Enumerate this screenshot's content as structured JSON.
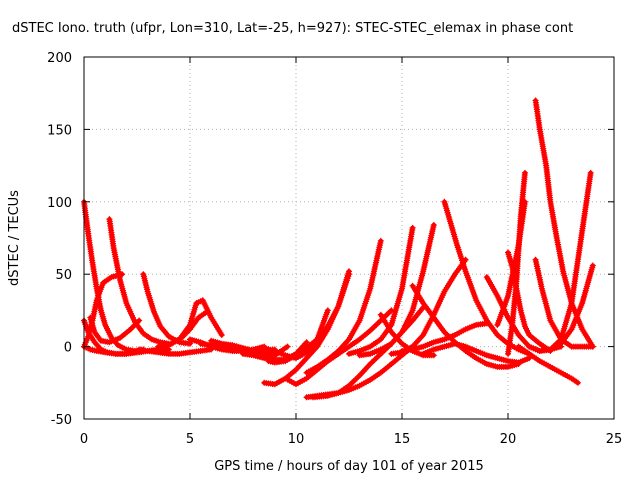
{
  "chart_data": {
    "type": "scatter",
    "title": "dSTEC Iono. truth (ufpr, Lon=310, Lat=-25, h=927): STEC-STEC_elemax in phase cont",
    "xlabel": "GPS time / hours of day 101 of year 2015",
    "ylabel": "dSTEC  / TECUs",
    "xlim": [
      0,
      25
    ],
    "ylim": [
      -50,
      200
    ],
    "xticks": [
      0,
      5,
      10,
      15,
      20,
      25
    ],
    "yticks": [
      -50,
      0,
      50,
      100,
      150,
      200
    ],
    "xtick_labels": [
      "0",
      "5",
      "10",
      "15",
      "20",
      "25"
    ],
    "ytick_labels": [
      "-50",
      "0",
      "50",
      "100",
      "150",
      "200"
    ],
    "grid": true,
    "legend": "none",
    "marker": "plus",
    "color": "#ff0000",
    "series": [
      {
        "x": [
          0.0,
          0.2,
          0.4,
          0.6,
          0.8,
          1.0,
          1.3,
          1.6,
          2.0,
          2.4,
          2.8
        ],
        "y": [
          100,
          78,
          58,
          40,
          25,
          15,
          6,
          1,
          -2,
          -3,
          -2
        ]
      },
      {
        "x": [
          0.0,
          0.2,
          0.5,
          0.8,
          1.1,
          1.5,
          2.0,
          2.5,
          3.0
        ],
        "y": [
          18,
          10,
          3,
          -2,
          -4,
          -5,
          -5,
          -4,
          -3
        ]
      },
      {
        "x": [
          0.0,
          0.3,
          0.6,
          1.0,
          1.5,
          2.0,
          2.5,
          3.0,
          3.5,
          4.0
        ],
        "y": [
          0,
          -2,
          -3,
          -4,
          -5,
          -5,
          -4,
          -3,
          -2,
          -2
        ]
      },
      {
        "x": [
          0.0,
          0.2,
          0.4,
          0.6,
          0.9,
          1.3,
          1.8
        ],
        "y": [
          0,
          7,
          18,
          32,
          44,
          48,
          50
        ]
      },
      {
        "x": [
          0.3,
          0.5,
          0.8,
          1.2,
          1.7,
          2.2,
          2.6
        ],
        "y": [
          20,
          10,
          4,
          3,
          6,
          12,
          18
        ]
      },
      {
        "x": [
          1.2,
          1.4,
          1.7,
          2.0,
          2.4,
          2.8,
          3.2,
          3.6,
          4.0
        ],
        "y": [
          88,
          68,
          46,
          30,
          17,
          9,
          5,
          3,
          2
        ]
      },
      {
        "x": [
          2.8,
          3.0,
          3.3,
          3.6,
          4.0,
          4.5,
          5.0
        ],
        "y": [
          50,
          38,
          24,
          14,
          7,
          3,
          2
        ]
      },
      {
        "x": [
          2.6,
          3.0,
          3.5,
          4.0,
          4.5,
          5.0,
          5.5,
          6.0
        ],
        "y": [
          -2,
          -3,
          -4,
          -5,
          -5,
          -4,
          -3,
          -2
        ]
      },
      {
        "x": [
          3.5,
          4.0,
          4.5,
          5.0,
          5.3,
          5.6,
          6.0,
          6.5
        ],
        "y": [
          0,
          1,
          5,
          15,
          30,
          32,
          20,
          8
        ]
      },
      {
        "x": [
          4.2,
          4.6,
          5.0,
          5.4,
          5.8
        ],
        "y": [
          3,
          6,
          12,
          20,
          24
        ]
      },
      {
        "x": [
          5.0,
          5.5,
          6.0,
          6.5,
          7.0,
          7.5,
          8.0,
          8.5
        ],
        "y": [
          5,
          3,
          0,
          -2,
          -3,
          -3,
          -2,
          0
        ]
      },
      {
        "x": [
          5.5,
          6.0,
          6.5,
          7.0,
          7.5,
          8.0,
          8.5,
          9.0
        ],
        "y": [
          2,
          1,
          0,
          -1,
          -2,
          -3,
          -3,
          -2
        ]
      },
      {
        "x": [
          6.0,
          6.5,
          7.0,
          7.5,
          8.0,
          8.5,
          9.0
        ],
        "y": [
          4,
          2,
          1,
          -1,
          -3,
          -4,
          -3
        ]
      },
      {
        "x": [
          7.5,
          8.0,
          8.5,
          9.0,
          9.3,
          9.6
        ],
        "y": [
          -5,
          -6,
          -7,
          -6,
          -3,
          0
        ]
      },
      {
        "x": [
          8.0,
          8.5,
          9.0,
          9.5,
          10.0,
          10.5
        ],
        "y": [
          -6,
          -8,
          -9,
          -9,
          -5,
          3
        ]
      },
      {
        "x": [
          8.5,
          9.0,
          9.5,
          10.0,
          10.5,
          11.0,
          11.5
        ],
        "y": [
          -1,
          -3,
          -6,
          -8,
          -4,
          5,
          25
        ]
      },
      {
        "x": [
          8.7,
          9.0,
          9.5,
          10.0,
          10.5,
          11.0,
          11.5,
          12.0,
          12.5
        ],
        "y": [
          -10,
          -11,
          -10,
          -6,
          -1,
          5,
          14,
          28,
          50
        ]
      },
      {
        "x": [
          8.5,
          9.0,
          9.5,
          10.0,
          10.5,
          11.0,
          11.5,
          12.0,
          12.5
        ],
        "y": [
          -25,
          -26,
          -22,
          -16,
          -8,
          0,
          12,
          28,
          52
        ]
      },
      {
        "x": [
          9.5,
          10.0,
          10.5,
          11.0,
          11.5,
          12.0,
          12.5,
          13.0,
          13.5,
          14.0,
          14.5
        ],
        "y": [
          -22,
          -26,
          -22,
          -16,
          -10,
          -5,
          0,
          5,
          11,
          18,
          25
        ]
      },
      {
        "x": [
          10.5,
          11.0,
          11.5,
          12.0,
          12.5,
          13.0,
          13.5,
          14.0
        ],
        "y": [
          -18,
          -14,
          -9,
          -3,
          5,
          18,
          40,
          73
        ]
      },
      {
        "x": [
          10.5,
          11.0,
          11.5,
          12.0,
          12.5,
          13.0,
          13.5,
          14.0,
          14.5,
          15.0,
          15.5
        ],
        "y": [
          -35,
          -34,
          -33,
          -32,
          -30,
          -27,
          -23,
          -18,
          -12,
          -6,
          0
        ]
      },
      {
        "x": [
          10.8,
          11.5,
          12.0,
          12.5,
          13.0,
          13.5,
          14.0,
          14.5,
          15.0,
          15.5,
          16.0
        ],
        "y": [
          -35,
          -34,
          -32,
          -27,
          -20,
          -12,
          -5,
          2,
          10,
          18,
          27
        ]
      },
      {
        "x": [
          12.5,
          13.0,
          13.5,
          14.0,
          14.5,
          15.0,
          15.5
        ],
        "y": [
          -5,
          -3,
          0,
          5,
          15,
          40,
          82
        ]
      },
      {
        "x": [
          13.0,
          13.5,
          14.0,
          14.5,
          15.0,
          15.5,
          16.0,
          16.5
        ],
        "y": [
          -6,
          -5,
          -2,
          2,
          10,
          25,
          52,
          84
        ]
      },
      {
        "x": [
          14.0,
          14.5,
          15.0,
          15.5,
          16.0,
          16.5
        ],
        "y": [
          22,
          10,
          2,
          -3,
          -6,
          -6
        ]
      },
      {
        "x": [
          14.5,
          15.0,
          15.5,
          16.0,
          16.5,
          17.0,
          17.5,
          18.0
        ],
        "y": [
          -5,
          -4,
          0,
          8,
          22,
          38,
          50,
          60
        ]
      },
      {
        "x": [
          15.0,
          15.5,
          16.0,
          16.5,
          17.0,
          17.5,
          18.0,
          18.5,
          19.0
        ],
        "y": [
          -3,
          -2,
          0,
          3,
          5,
          8,
          12,
          15,
          16
        ]
      },
      {
        "x": [
          15.5,
          16.0,
          16.5,
          17.0,
          17.5,
          18.0,
          18.5,
          19.0,
          19.5,
          20.0,
          20.5
        ],
        "y": [
          42,
          30,
          20,
          10,
          3,
          -3,
          -8,
          -12,
          -14,
          -14,
          -12
        ]
      },
      {
        "x": [
          16.0,
          16.5,
          17.0,
          17.5,
          18.0,
          18.5,
          19.0,
          19.5,
          20.0,
          20.5,
          21.0
        ],
        "y": [
          -5,
          -2,
          0,
          2,
          0,
          -3,
          -6,
          -8,
          -10,
          -11,
          -8
        ]
      },
      {
        "x": [
          17.0,
          17.3,
          17.6,
          18.0,
          18.5,
          19.0,
          19.5,
          20.0,
          20.5,
          21.0
        ],
        "y": [
          100,
          85,
          70,
          52,
          32,
          18,
          8,
          2,
          -2,
          -5
        ]
      },
      {
        "x": [
          19.0,
          19.5,
          20.0,
          20.5,
          21.0,
          21.5,
          22.0,
          22.5
        ],
        "y": [
          48,
          35,
          20,
          8,
          0,
          -3,
          -2,
          0
        ]
      },
      {
        "x": [
          20.0,
          20.2,
          20.4,
          20.6,
          20.8,
          21.0,
          21.5,
          22.0
        ],
        "y": [
          65,
          55,
          40,
          25,
          14,
          8,
          2,
          -3
        ]
      },
      {
        "x": [
          20.0,
          20.2,
          20.4,
          20.6,
          20.8
        ],
        "y": [
          -5,
          15,
          45,
          90,
          120
        ]
      },
      {
        "x": [
          19.5,
          20.0,
          20.5,
          20.8
        ],
        "y": [
          15,
          35,
          70,
          100
        ]
      },
      {
        "x": [
          21.3,
          21.5,
          21.8,
          22.0,
          22.3,
          22.6,
          23.0,
          23.5,
          24.0
        ],
        "y": [
          170,
          150,
          125,
          100,
          75,
          52,
          30,
          12,
          0
        ]
      },
      {
        "x": [
          21.3,
          21.6,
          22.0,
          22.5,
          23.0,
          23.5,
          24.0
        ],
        "y": [
          60,
          40,
          18,
          5,
          0,
          0,
          0
        ]
      },
      {
        "x": [
          20.5,
          21.0,
          21.5,
          22.0,
          22.5,
          23.0,
          23.3
        ],
        "y": [
          0,
          -5,
          -10,
          -14,
          -18,
          -22,
          -25
        ]
      },
      {
        "x": [
          21.0,
          21.5,
          22.0,
          22.5,
          23.0,
          23.5,
          23.9
        ],
        "y": [
          0,
          -3,
          -2,
          5,
          30,
          80,
          120
        ]
      },
      {
        "x": [
          21.5,
          22.0,
          22.5,
          23.0,
          23.5,
          24.0
        ],
        "y": [
          -3,
          -2,
          2,
          12,
          30,
          56
        ]
      }
    ]
  }
}
